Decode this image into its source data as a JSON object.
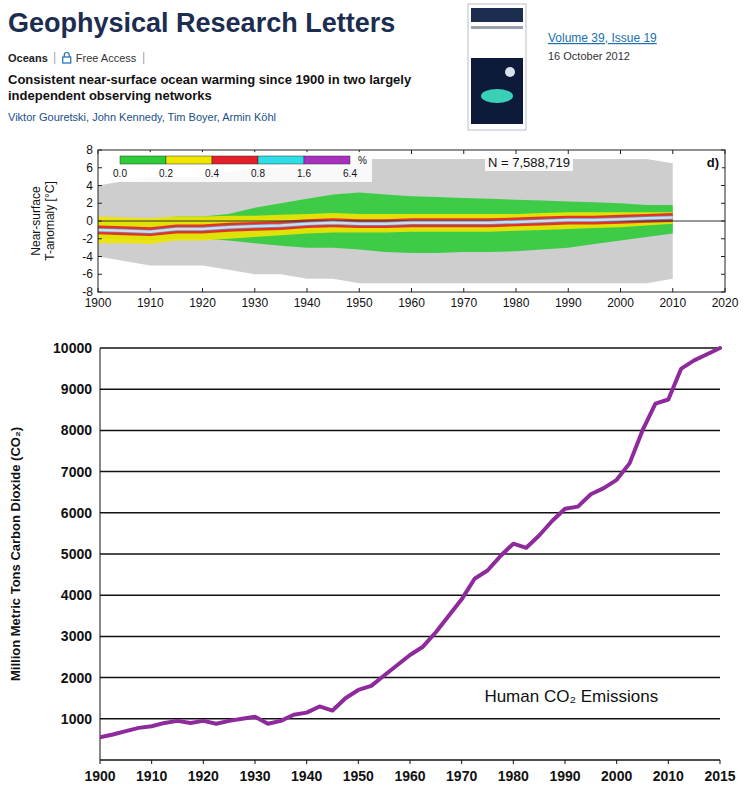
{
  "header": {
    "journal": "Geophysical Research Letters",
    "section": "Oceans",
    "access": "Free Access",
    "title": "Consistent near-surface ocean warming since 1900 in two largely independent observing networks",
    "authors": "Viktor Gouretski, John Kennedy, Tim Boyer, Armin Köhl",
    "issue": "Volume 39, Issue 19",
    "date": "16 October 2012"
  },
  "chart_data": [
    {
      "type": "band",
      "y_label": "Near-surface T-anomaly [°C]",
      "annotations": [
        "N = 7,588,719",
        "d)"
      ],
      "x": [
        1900,
        1905,
        1910,
        1915,
        1920,
        1925,
        1930,
        1935,
        1940,
        1945,
        1950,
        1955,
        1960,
        1965,
        1970,
        1975,
        1980,
        1985,
        1990,
        1995,
        2000,
        2005,
        2010
      ],
      "xlim": [
        1900,
        2020
      ],
      "xticks": [
        1900,
        1910,
        1920,
        1930,
        1940,
        1950,
        1960,
        1970,
        1980,
        1990,
        2000,
        2010,
        2020
      ],
      "ylim": [
        -8,
        8
      ],
      "yticks": [
        -8,
        -6,
        -4,
        -2,
        0,
        2,
        4,
        6,
        8
      ],
      "colorbar": {
        "ticks": [
          {
            "value": 0,
            "label": "0.0"
          },
          0.2,
          0.4,
          0.8,
          1.6,
          6.4
        ],
        "colors": [
          "#2fcc3a",
          "#f0e400",
          "#e3202a",
          "#2fdde6",
          "#a82fc0"
        ],
        "label": "%"
      },
      "series": [
        {
          "type": "area",
          "color": "#a6a6a6",
          "lower": [
            -4,
            -4.5,
            -5,
            -5,
            -5,
            -5.5,
            -6,
            -6,
            -6.5,
            -6.5,
            -7,
            -7,
            -7,
            -7,
            -7,
            -7,
            -7,
            -7,
            -7,
            -7,
            -7,
            -7,
            -6.5
          ],
          "upper": [
            4,
            4.5,
            5,
            5,
            5,
            5.5,
            6,
            6,
            6.5,
            6.5,
            7,
            7,
            7,
            7,
            7,
            7,
            7,
            7,
            7,
            7,
            7,
            7,
            6.5
          ]
        },
        {
          "type": "area",
          "color": "#2fcc3a",
          "lower": [
            -2,
            -2,
            -2.2,
            -2,
            -2,
            -2.2,
            -2.5,
            -2.8,
            -3,
            -3,
            -3.2,
            -3.5,
            -3.6,
            -3.6,
            -3.5,
            -3.5,
            -3.4,
            -3.2,
            -3,
            -2.6,
            -2.2,
            -1.8,
            -1.4
          ],
          "upper": [
            0,
            0,
            0,
            0.5,
            0.5,
            0.8,
            1.5,
            2,
            2.5,
            3,
            3.2,
            3,
            2.8,
            2.7,
            2.6,
            2.5,
            2.4,
            2.3,
            2.2,
            2.1,
            2,
            1.8,
            1.8
          ]
        },
        {
          "type": "area",
          "color": "#f0e400",
          "lower": [
            -2.5,
            -2.5,
            -2.6,
            -2.2,
            -2.2,
            -2,
            -1.8,
            -1.6,
            -1.4,
            -1.3,
            -1.3,
            -1.3,
            -1.2,
            -1.2,
            -1.2,
            -1.2,
            -1.1,
            -1,
            -0.9,
            -0.8,
            -0.7,
            -0.5,
            -0.3
          ],
          "upper": [
            0.5,
            0.4,
            0.3,
            0.5,
            0.5,
            0.6,
            0.6,
            0.7,
            0.8,
            0.9,
            0.8,
            0.8,
            0.8,
            0.8,
            0.8,
            0.8,
            0.8,
            0.9,
            1,
            1,
            1,
            1,
            1
          ]
        },
        {
          "type": "area",
          "color": "#e3202a",
          "lower": [
            -1.5,
            -1.6,
            -1.7,
            -1.4,
            -1.4,
            -1.2,
            -1.1,
            -1,
            -0.8,
            -0.7,
            -0.8,
            -0.8,
            -0.7,
            -0.7,
            -0.7,
            -0.7,
            -0.6,
            -0.5,
            -0.4,
            -0.4,
            -0.3,
            -0.2,
            -0.1
          ],
          "upper": [
            -0.5,
            -0.6,
            -0.7,
            -0.4,
            -0.4,
            -0.2,
            -0.1,
            0,
            0.2,
            0.3,
            0.2,
            0.2,
            0.3,
            0.3,
            0.3,
            0.3,
            0.4,
            0.5,
            0.6,
            0.6,
            0.7,
            0.8,
            0.9
          ]
        },
        {
          "type": "line",
          "color": "#cfdcec",
          "values": [
            -1,
            -1.1,
            -1.2,
            -0.9,
            -0.9,
            -0.7,
            -0.6,
            -0.5,
            -0.3,
            -0.2,
            -0.3,
            -0.3,
            -0.2,
            -0.2,
            -0.2,
            -0.2,
            -0.1,
            0,
            0.1,
            0.1,
            0.2,
            0.3,
            0.4
          ]
        }
      ]
    },
    {
      "type": "line",
      "y_label": "Million Metric Tons Carbon Dioxide (CO₂)",
      "annotations": [
        "Human CO₂ Emissions"
      ],
      "categories": [
        "1900",
        null,
        null,
        null,
        "1910",
        null,
        null,
        null,
        "1920",
        null,
        null,
        null,
        "1930",
        null,
        null,
        null,
        "1940",
        null,
        null,
        null,
        "1950",
        null,
        null,
        null,
        "1960",
        null,
        null,
        null,
        "1970",
        null,
        null,
        null,
        "1980",
        null,
        null,
        null,
        "1990",
        null,
        null,
        null,
        "2000",
        null,
        null,
        null,
        "2010",
        null,
        null,
        null,
        "2015"
      ],
      "ylim": [
        0,
        10000
      ],
      "yticks": [
        1000,
        2000,
        3000,
        4000,
        5000,
        6000,
        7000,
        8000,
        9000,
        10000
      ],
      "grid": true,
      "series": [
        {
          "color": "#8e2a9c",
          "values": [
            550,
            620,
            700,
            780,
            820,
            900,
            950,
            900,
            950,
            880,
            950,
            1000,
            1050,
            880,
            950,
            1100,
            1150,
            1300,
            1200,
            1500,
            1700,
            1800,
            2050,
            2300,
            2550,
            2750,
            3100,
            3500,
            3900,
            4400,
            4600,
            4950,
            5250,
            5150,
            5450,
            5800,
            6100,
            6150,
            6450,
            6600,
            6800,
            7200,
            8000,
            8650,
            8750,
            9500,
            9700,
            9850,
            10000
          ]
        }
      ]
    }
  ]
}
